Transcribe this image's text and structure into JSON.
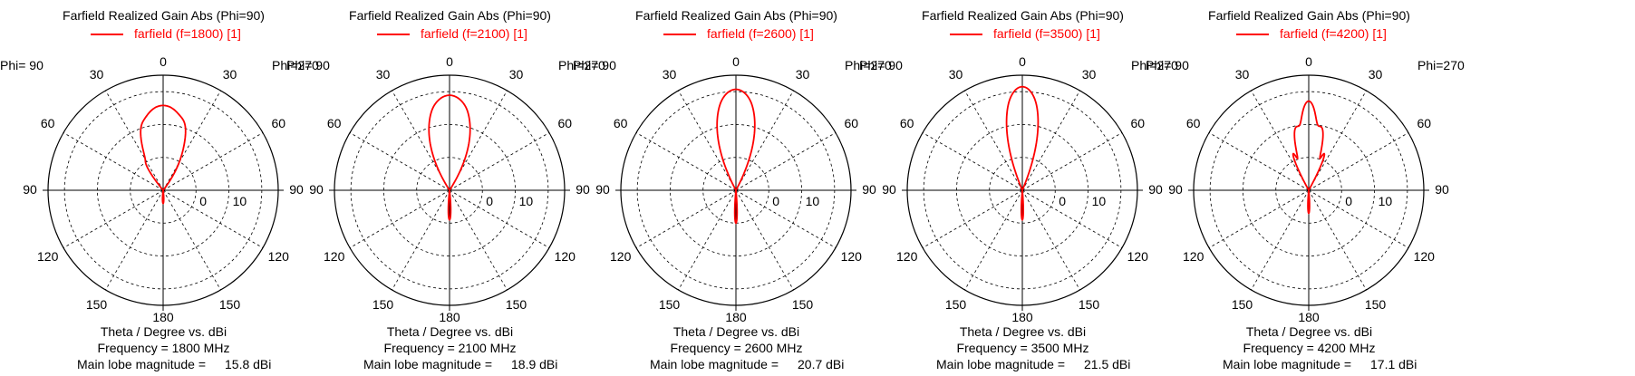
{
  "chart_data": [
    {
      "type": "polar",
      "title": "Farfield Realized Gain Abs (Phi=90)",
      "legend": "farfield (f=1800) [1]",
      "series_color": "#ff0000",
      "angle_labels": [
        "0",
        "30",
        "30",
        "60",
        "60",
        "90",
        "90",
        "120",
        "120",
        "150",
        "150",
        "180"
      ],
      "phi_left": "Phi= 90",
      "phi_right": "Phi=270",
      "radial_ticks": [
        "0",
        "10"
      ],
      "radial_range": [
        -10,
        25
      ],
      "xlabel": "Theta / Degree vs. dBi",
      "frequency": "Frequency = 1800 MHz",
      "main_lobe_label": "Main lobe magnitude =",
      "main_lobe_value": "15.8 dBi",
      "lobes": [
        {
          "theta_deg": 0,
          "gain_dbi": 15.8,
          "width_deg": 22
        },
        {
          "theta_deg": -18,
          "gain_dbi": 4.5,
          "width_deg": 7
        },
        {
          "theta_deg": 17,
          "gain_dbi": 5.5,
          "width_deg": 7
        },
        {
          "theta_deg": -33,
          "gain_dbi": -3,
          "width_deg": 6
        },
        {
          "theta_deg": 180,
          "gain_dbi": -6,
          "width_deg": 10
        }
      ]
    },
    {
      "type": "polar",
      "title": "Farfield Realized Gain Abs (Phi=90)",
      "legend": "farfield (f=2100) [1]",
      "series_color": "#ff0000",
      "angle_labels": [
        "0",
        "30",
        "30",
        "60",
        "60",
        "90",
        "90",
        "120",
        "120",
        "150",
        "150",
        "180"
      ],
      "phi_left": "Phi= 90",
      "phi_right": "Phi=270",
      "radial_ticks": [
        "0",
        "10"
      ],
      "radial_range": [
        -10,
        25
      ],
      "xlabel": "Theta / Degree vs. dBi",
      "frequency": "Frequency = 2100 MHz",
      "main_lobe_label": "Main lobe magnitude =",
      "main_lobe_value": "18.9 dBi",
      "lobes": [
        {
          "theta_deg": 0,
          "gain_dbi": 18.9,
          "width_deg": 18
        },
        {
          "theta_deg": -11,
          "gain_dbi": 1,
          "width_deg": 5
        },
        {
          "theta_deg": 11,
          "gain_dbi": 1.5,
          "width_deg": 5
        },
        {
          "theta_deg": 180,
          "gain_dbi": -1,
          "width_deg": 6
        }
      ]
    },
    {
      "type": "polar",
      "title": "Farfield Realized Gain Abs (Phi=90)",
      "legend": "farfield (f=2600) [1]",
      "series_color": "#ff0000",
      "angle_labels": [
        "0",
        "30",
        "30",
        "60",
        "60",
        "90",
        "90",
        "120",
        "120",
        "150",
        "150",
        "180"
      ],
      "phi_left": "Phi= 90",
      "phi_right": "Phi=270",
      "radial_ticks": [
        "0",
        "10"
      ],
      "radial_range": [
        -10,
        25
      ],
      "xlabel": "Theta / Degree vs. dBi",
      "frequency": "Frequency = 2600 MHz",
      "main_lobe_label": "Main lobe magnitude =",
      "main_lobe_value": "20.7 dBi",
      "lobes": [
        {
          "theta_deg": 0,
          "gain_dbi": 20.7,
          "width_deg": 15
        },
        {
          "theta_deg": -9,
          "gain_dbi": 1,
          "width_deg": 4
        },
        {
          "theta_deg": 9,
          "gain_dbi": 1,
          "width_deg": 4
        },
        {
          "theta_deg": 180,
          "gain_dbi": 0,
          "width_deg": 5
        }
      ]
    },
    {
      "type": "polar",
      "title": "Farfield Realized Gain Abs (Phi=90)",
      "legend": "farfield (f=3500) [1]",
      "series_color": "#ff0000",
      "angle_labels": [
        "0",
        "30",
        "30",
        "60",
        "60",
        "90",
        "90",
        "120",
        "120",
        "150",
        "150",
        "180"
      ],
      "phi_left": "Phi= 90",
      "phi_right": "Phi=270",
      "radial_ticks": [
        "0",
        "10"
      ],
      "radial_range": [
        -10,
        25
      ],
      "xlabel": "Theta / Degree vs. dBi",
      "frequency": "Frequency = 3500 MHz",
      "main_lobe_label": "Main lobe magnitude =",
      "main_lobe_value": "21.5 dBi",
      "lobes": [
        {
          "theta_deg": 0,
          "gain_dbi": 21.5,
          "width_deg": 12
        },
        {
          "theta_deg": -8,
          "gain_dbi": 2,
          "width_deg": 4
        },
        {
          "theta_deg": 8,
          "gain_dbi": 2.5,
          "width_deg": 4
        },
        {
          "theta_deg": 180,
          "gain_dbi": -1,
          "width_deg": 5
        }
      ]
    },
    {
      "type": "polar",
      "title": "Farfield Realized Gain Abs (Phi=90)",
      "legend": "farfield (f=4200) [1]",
      "series_color": "#ff0000",
      "angle_labels": [
        "0",
        "30",
        "30",
        "60",
        "60",
        "90",
        "90",
        "120",
        "120",
        "150",
        "150",
        "180"
      ],
      "phi_left": "Phi= 90",
      "phi_right": "Phi=270",
      "radial_ticks": [
        "0",
        "10"
      ],
      "radial_range": [
        -10,
        25
      ],
      "xlabel": "Theta / Degree vs. dBi",
      "frequency": "Frequency = 4200 MHz",
      "main_lobe_label": "Main lobe magnitude =",
      "main_lobe_value": "17.1 dBi",
      "lobes": [
        {
          "theta_deg": 0,
          "gain_dbi": 17.1,
          "width_deg": 7
        },
        {
          "theta_deg": -11,
          "gain_dbi": 9.5,
          "width_deg": 7
        },
        {
          "theta_deg": 11,
          "gain_dbi": 9.5,
          "width_deg": 7
        },
        {
          "theta_deg": -23,
          "gain_dbi": 2,
          "width_deg": 5
        },
        {
          "theta_deg": 23,
          "gain_dbi": 2,
          "width_deg": 5
        },
        {
          "theta_deg": 180,
          "gain_dbi": -3,
          "width_deg": 6
        }
      ]
    }
  ]
}
